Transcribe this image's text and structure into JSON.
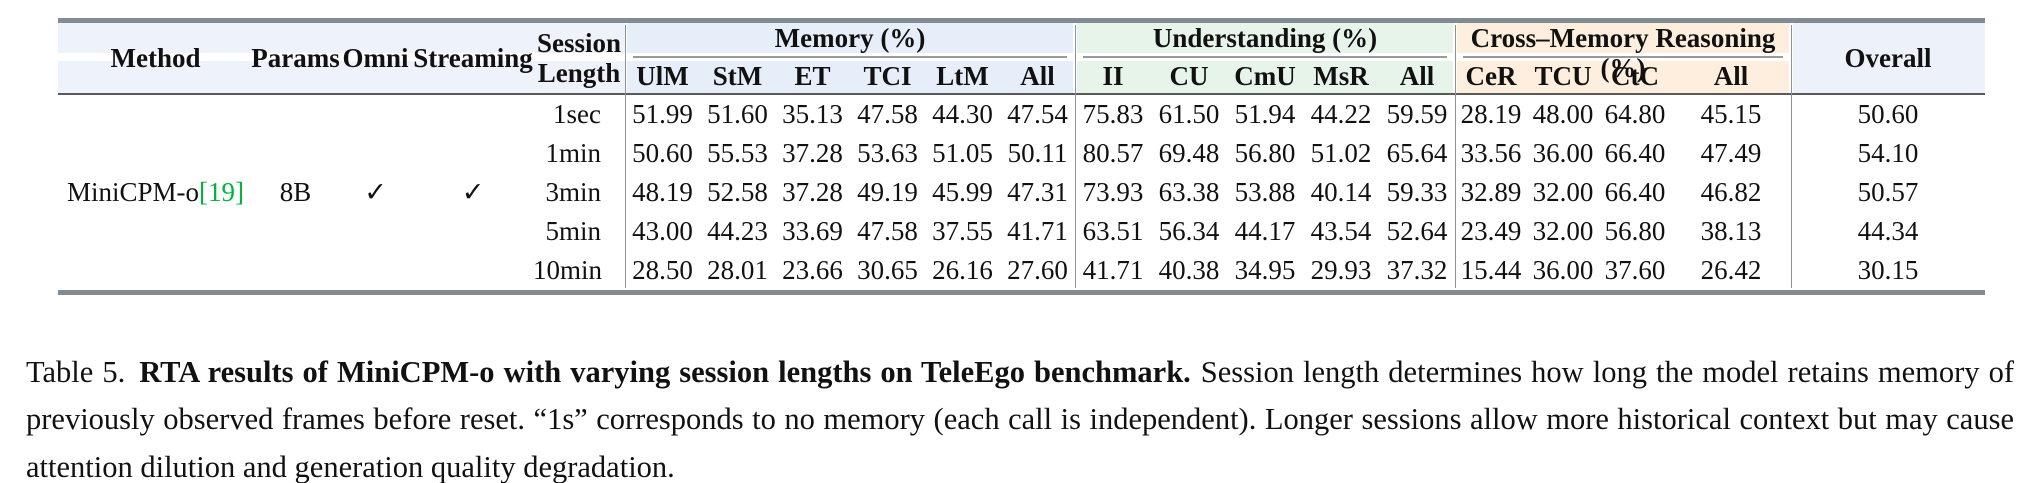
{
  "table": {
    "header_left": [
      "Method",
      "Params",
      "Omni",
      "Streaming",
      "Session\nLength"
    ],
    "left_bg": "#eef2fa",
    "groups": [
      {
        "label": "Memory (%)",
        "bg": "#e6eefa",
        "cols": [
          "UlM",
          "StM",
          "ET",
          "TCI",
          "LtM",
          "All"
        ]
      },
      {
        "label": "Understanding (%)",
        "bg": "#e7f4ea",
        "cols": [
          "II",
          "CU",
          "CmU",
          "MsR",
          "All"
        ]
      },
      {
        "label": "Cross–Memory Reasoning (%)",
        "bg": "#fdeedd",
        "cols": [
          "CeR",
          "TCU",
          "CtC",
          "All"
        ]
      }
    ],
    "overall": {
      "label": "Overall",
      "bg": "#edf1f9"
    },
    "method_row": {
      "method": "MiniCPM-o",
      "citation": "[19]",
      "citation_color": "#00b43c",
      "params": "8B",
      "omni": "✓",
      "streaming": "✓"
    },
    "rows": [
      {
        "session": "1sec",
        "memory": [
          "51.99",
          "51.60",
          "35.13",
          "47.58",
          "44.30",
          "47.54"
        ],
        "understanding": [
          "75.83",
          "61.50",
          "51.94",
          "44.22",
          "59.59"
        ],
        "cross_memory": [
          "28.19",
          "48.00",
          "64.80",
          "45.15"
        ],
        "overall": "50.60"
      },
      {
        "session": "1min",
        "memory": [
          "50.60",
          "55.53",
          "37.28",
          "53.63",
          "51.05",
          "50.11"
        ],
        "understanding": [
          "80.57",
          "69.48",
          "56.80",
          "51.02",
          "65.64"
        ],
        "cross_memory": [
          "33.56",
          "36.00",
          "66.40",
          "47.49"
        ],
        "overall": "54.10"
      },
      {
        "session": "3min",
        "memory": [
          "48.19",
          "52.58",
          "37.28",
          "49.19",
          "45.99",
          "47.31"
        ],
        "understanding": [
          "73.93",
          "63.38",
          "53.88",
          "40.14",
          "59.33"
        ],
        "cross_memory": [
          "32.89",
          "32.00",
          "66.40",
          "46.82"
        ],
        "overall": "50.57"
      },
      {
        "session": "5min",
        "memory": [
          "43.00",
          "44.23",
          "33.69",
          "47.58",
          "37.55",
          "41.71"
        ],
        "understanding": [
          "63.51",
          "56.34",
          "44.17",
          "43.54",
          "52.64"
        ],
        "cross_memory": [
          "23.49",
          "32.00",
          "56.80",
          "38.13"
        ],
        "overall": "44.34"
      },
      {
        "session": "10min",
        "memory": [
          "28.50",
          "28.01",
          "23.66",
          "30.65",
          "26.16",
          "27.60"
        ],
        "understanding": [
          "41.71",
          "40.38",
          "34.95",
          "29.93",
          "37.32"
        ],
        "cross_memory": [
          "15.44",
          "36.00",
          "37.60",
          "26.42"
        ],
        "overall": "30.15"
      }
    ]
  },
  "caption": {
    "prefix": "Table 5.",
    "title": "RTA results of MiniCPM-o with varying session lengths on TeleEgo benchmark.",
    "body": "Session length determines how long the model retains memory of previously observed frames before reset. “1s” corresponds to no memory (each call is independent). Longer sessions allow more historical context but may cause attention dilution and generation quality degradation."
  }
}
